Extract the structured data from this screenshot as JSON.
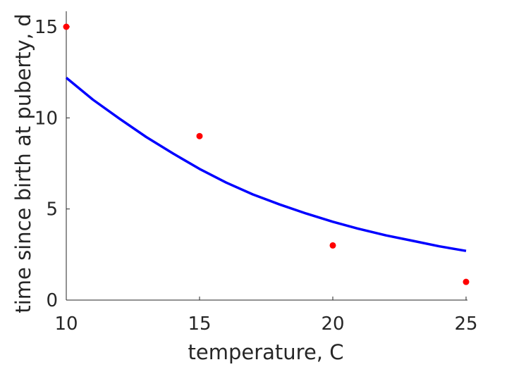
{
  "chart_data": {
    "type": "scatter",
    "xlabel": "temperature, C",
    "ylabel": "time since birth at puberty, d",
    "xlim": [
      10,
      25
    ],
    "ylim": [
      0,
      15
    ],
    "xticks": [
      10,
      15,
      20,
      25
    ],
    "yticks": [
      0,
      5,
      10,
      15
    ],
    "grid": false,
    "legend": "none",
    "series": [
      {
        "kind": "scatter",
        "color": "#ff0000",
        "x": [
          10,
          15,
          20,
          25
        ],
        "y": [
          15,
          9,
          3,
          1
        ]
      },
      {
        "kind": "line",
        "color": "#0000ff",
        "x": [
          10,
          11,
          12,
          13,
          14,
          15,
          16,
          17,
          18,
          19,
          20,
          21,
          22,
          23,
          24,
          25
        ],
        "y": [
          12.2,
          11.0,
          9.95,
          8.95,
          8.05,
          7.2,
          6.45,
          5.8,
          5.25,
          4.75,
          4.3,
          3.9,
          3.55,
          3.25,
          2.95,
          2.7
        ]
      }
    ]
  }
}
